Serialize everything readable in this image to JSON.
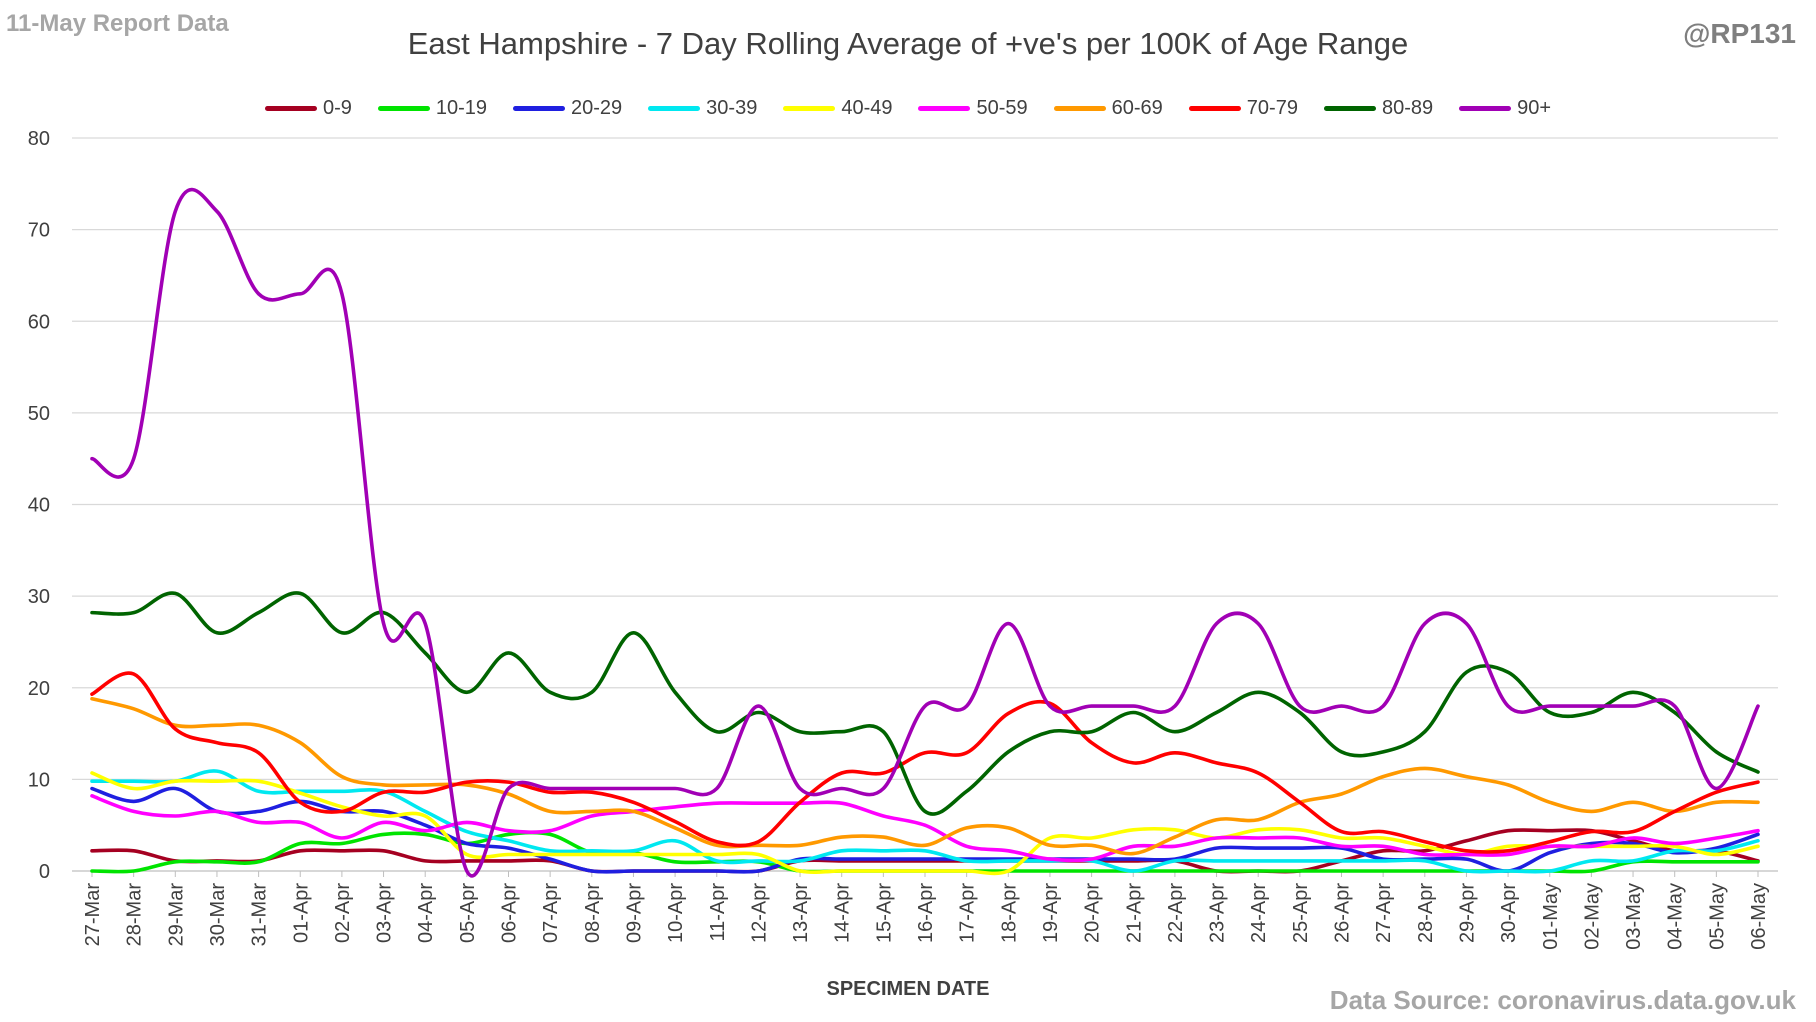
{
  "header": {
    "report_tag": "11-May Report Data",
    "handle": "@RP131",
    "title": "East Hampshire - 7 Day Rolling Average of +ve's per 100K of Age Range"
  },
  "footer": {
    "source": "Data Source: coronavirus.data.gov.uk"
  },
  "chart_data": {
    "type": "line",
    "title": "East Hampshire - 7 Day Rolling Average of +ve's per 100K of Age Range",
    "xlabel": "SPECIMEN DATE",
    "ylabel": "",
    "ylim": [
      0,
      80
    ],
    "yticks": [
      0,
      10,
      20,
      30,
      40,
      50,
      60,
      70,
      80
    ],
    "grid": true,
    "legend_position": "top",
    "categories": [
      "27-Mar",
      "28-Mar",
      "29-Mar",
      "30-Mar",
      "31-Mar",
      "01-Apr",
      "02-Apr",
      "03-Apr",
      "04-Apr",
      "05-Apr",
      "06-Apr",
      "07-Apr",
      "08-Apr",
      "09-Apr",
      "10-Apr",
      "11-Apr",
      "12-Apr",
      "13-Apr",
      "14-Apr",
      "15-Apr",
      "16-Apr",
      "17-Apr",
      "18-Apr",
      "19-Apr",
      "20-Apr",
      "21-Apr",
      "22-Apr",
      "23-Apr",
      "24-Apr",
      "25-Apr",
      "26-Apr",
      "27-Apr",
      "28-Apr",
      "29-Apr",
      "30-Apr",
      "01-May",
      "02-May",
      "03-May",
      "04-May",
      "05-May",
      "06-May"
    ],
    "series": [
      {
        "name": "0-9",
        "color": "#a50021",
        "values": [
          2.2,
          2.2,
          1.1,
          1.1,
          1.1,
          2.2,
          2.2,
          2.2,
          1.1,
          1.1,
          1.1,
          1.1,
          0,
          0,
          0,
          0,
          0,
          1.1,
          1.1,
          1.1,
          1.1,
          1.1,
          1.1,
          1.1,
          1.1,
          1.1,
          1.1,
          0,
          0,
          0,
          1.1,
          2.2,
          2.2,
          3.3,
          4.4,
          4.4,
          4.4,
          3.3,
          2.2,
          2.2,
          1.1
        ]
      },
      {
        "name": "10-19",
        "color": "#00e400",
        "values": [
          0,
          0,
          1,
          1,
          1,
          3,
          3,
          4,
          4,
          3,
          4,
          4,
          2,
          2,
          1,
          1,
          1,
          0,
          0,
          0,
          0,
          0,
          0,
          0,
          0,
          0,
          0,
          0,
          0,
          0,
          0,
          0,
          0,
          0,
          0,
          0,
          0,
          1,
          1,
          1,
          1
        ]
      },
      {
        "name": "20-29",
        "color": "#1f1fe0",
        "values": [
          9,
          7.6,
          9,
          6.5,
          6.5,
          7.6,
          6.5,
          6.5,
          5,
          3,
          2.5,
          1.3,
          0,
          0,
          0,
          0,
          0,
          1.3,
          1.3,
          1.3,
          1.3,
          1.3,
          1.3,
          1.3,
          1.3,
          1.3,
          1.3,
          2.5,
          2.5,
          2.5,
          2.5,
          1.3,
          1.3,
          1.3,
          0,
          2,
          3,
          3,
          2,
          2.5,
          4
        ]
      },
      {
        "name": "30-39",
        "color": "#00e8f0",
        "values": [
          9.8,
          9.8,
          9.8,
          10.9,
          8.7,
          8.7,
          8.7,
          8.7,
          6.5,
          4.3,
          3.3,
          2.2,
          2.2,
          2.2,
          3.3,
          1.1,
          1.1,
          1.1,
          2.2,
          2.2,
          2.2,
          1.1,
          1.1,
          1.1,
          1.1,
          0,
          1.1,
          1.1,
          1.1,
          1.1,
          1.1,
          1.1,
          1.1,
          0,
          0,
          0,
          1.1,
          1.1,
          2.2,
          2.2,
          3.3
        ]
      },
      {
        "name": "40-49",
        "color": "#ffff00",
        "values": [
          10.7,
          9,
          9.8,
          9.8,
          9.8,
          8.5,
          7,
          6,
          6,
          1.8,
          1.8,
          1.8,
          1.8,
          1.8,
          1.8,
          1.8,
          1.8,
          0,
          0,
          0,
          0,
          0,
          0,
          3.6,
          3.6,
          4.5,
          4.5,
          3.6,
          4.5,
          4.5,
          3.6,
          3.6,
          2.7,
          1.8,
          2.7,
          2.7,
          2.7,
          2.7,
          2.7,
          1.8,
          2.7
        ]
      },
      {
        "name": "50-59",
        "color": "#ff00ff",
        "values": [
          8.2,
          6.5,
          6,
          6.5,
          5.3,
          5.3,
          3.6,
          5.3,
          4.4,
          5.3,
          4.4,
          4.4,
          6,
          6.5,
          7,
          7.4,
          7.4,
          7.4,
          7.4,
          6,
          5,
          2.7,
          2.2,
          1.3,
          1.3,
          2.7,
          2.7,
          3.6,
          3.6,
          3.6,
          2.7,
          2.7,
          1.8,
          1.8,
          1.8,
          2.7,
          2.7,
          3.6,
          3,
          3.6,
          4.4
        ]
      },
      {
        "name": "60-69",
        "color": "#ff9900",
        "values": [
          18.8,
          17.7,
          15.9,
          15.9,
          15.9,
          14,
          10.3,
          9.4,
          9.4,
          9.4,
          8.4,
          6.5,
          6.5,
          6.5,
          4.7,
          2.8,
          2.8,
          2.8,
          3.7,
          3.7,
          2.8,
          4.7,
          4.7,
          2.8,
          2.8,
          1.9,
          3.7,
          5.6,
          5.6,
          7.5,
          8.4,
          10.3,
          11.2,
          10.3,
          9.4,
          7.5,
          6.5,
          7.5,
          6.5,
          7.5,
          7.5
        ]
      },
      {
        "name": "70-79",
        "color": "#ff0000",
        "values": [
          19.3,
          21.5,
          15.5,
          14,
          12.9,
          7.5,
          6.5,
          8.6,
          8.6,
          9.7,
          9.7,
          8.6,
          8.6,
          7.5,
          5.4,
          3.2,
          3.2,
          7.5,
          10.7,
          10.7,
          12.9,
          12.9,
          17.2,
          18.3,
          14,
          11.8,
          12.9,
          11.8,
          10.7,
          7.5,
          4.3,
          4.3,
          3.2,
          2.2,
          2.2,
          3.2,
          4.3,
          4.3,
          6.5,
          8.6,
          9.7
        ]
      },
      {
        "name": "80-89",
        "color": "#006400",
        "values": [
          28.2,
          28.2,
          30.3,
          26,
          28.2,
          30.3,
          26,
          28.2,
          23.8,
          19.5,
          23.8,
          19.5,
          19.5,
          26,
          19.5,
          15.2,
          17.3,
          15.2,
          15.2,
          15.2,
          6.5,
          8.7,
          13,
          15.2,
          15.2,
          17.3,
          15.2,
          17.3,
          19.5,
          17.3,
          13,
          13,
          15.2,
          21.7,
          21.7,
          17.3,
          17.3,
          19.5,
          17.3,
          13,
          10.8
        ]
      },
      {
        "name": "90+",
        "color": "#a100b5",
        "values": [
          45,
          45,
          72,
          72,
          63,
          63,
          63,
          27,
          27,
          0,
          9,
          9,
          9,
          9,
          9,
          9,
          18,
          9,
          9,
          9,
          18,
          18,
          27,
          18,
          18,
          18,
          18,
          27,
          27,
          18,
          18,
          18,
          27,
          27,
          18,
          18,
          18,
          18,
          18,
          9,
          18
        ]
      }
    ]
  }
}
